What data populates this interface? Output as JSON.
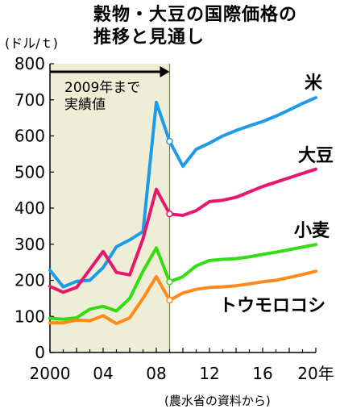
{
  "chart_data": {
    "type": "line",
    "title": [
      "穀物・大豆の国際価格の",
      "推移と見通し"
    ],
    "unit_label": "(ドル/ｔ)",
    "source": "(農水省の資料から)",
    "ylim": [
      0,
      800
    ],
    "yticks": [
      0,
      100,
      200,
      300,
      400,
      500,
      600,
      700,
      800
    ],
    "xlim": [
      2000,
      2020
    ],
    "xticks": [
      {
        "value": 2000,
        "label": "2000"
      },
      {
        "value": 2004,
        "label": "04"
      },
      {
        "value": 2008,
        "label": "08"
      },
      {
        "value": 2012,
        "label": "12"
      },
      {
        "value": 2016,
        "label": "16"
      },
      {
        "value": 2020,
        "label": "20年"
      }
    ],
    "actual_until": 2009,
    "annotation": [
      "2009年まで",
      "実績値"
    ],
    "series": [
      {
        "name": "米",
        "color": "#1e9be8",
        "points": [
          [
            2000,
            228
          ],
          [
            2001,
            182
          ],
          [
            2002,
            197
          ],
          [
            2003,
            200
          ],
          [
            2004,
            235
          ],
          [
            2005,
            293
          ],
          [
            2006,
            312
          ],
          [
            2007,
            335
          ],
          [
            2008,
            693
          ],
          [
            2009,
            585
          ],
          [
            2010,
            516
          ],
          [
            2011,
            563
          ],
          [
            2012,
            580
          ],
          [
            2013,
            600
          ],
          [
            2014,
            615
          ],
          [
            2015,
            628
          ],
          [
            2016,
            640
          ],
          [
            2017,
            655
          ],
          [
            2018,
            672
          ],
          [
            2019,
            690
          ],
          [
            2020,
            706
          ]
        ]
      },
      {
        "name": "大豆",
        "color": "#e8176e",
        "points": [
          [
            2000,
            183
          ],
          [
            2001,
            167
          ],
          [
            2002,
            180
          ],
          [
            2003,
            230
          ],
          [
            2004,
            280
          ],
          [
            2005,
            222
          ],
          [
            2006,
            215
          ],
          [
            2007,
            315
          ],
          [
            2008,
            452
          ],
          [
            2009,
            384
          ],
          [
            2010,
            380
          ],
          [
            2011,
            393
          ],
          [
            2012,
            418
          ],
          [
            2013,
            422
          ],
          [
            2014,
            430
          ],
          [
            2015,
            445
          ],
          [
            2016,
            460
          ],
          [
            2017,
            472
          ],
          [
            2018,
            484
          ],
          [
            2019,
            496
          ],
          [
            2020,
            508
          ]
        ]
      },
      {
        "name": "小麦",
        "color": "#33dd11",
        "points": [
          [
            2000,
            95
          ],
          [
            2001,
            92
          ],
          [
            2002,
            96
          ],
          [
            2003,
            120
          ],
          [
            2004,
            128
          ],
          [
            2005,
            115
          ],
          [
            2006,
            150
          ],
          [
            2007,
            225
          ],
          [
            2008,
            290
          ],
          [
            2009,
            196
          ],
          [
            2010,
            210
          ],
          [
            2011,
            240
          ],
          [
            2012,
            255
          ],
          [
            2013,
            258
          ],
          [
            2014,
            260
          ],
          [
            2015,
            265
          ],
          [
            2016,
            272
          ],
          [
            2017,
            278
          ],
          [
            2018,
            285
          ],
          [
            2019,
            292
          ],
          [
            2020,
            299
          ]
        ]
      },
      {
        "name": "トウモロコシ",
        "color": "#ff8a1c",
        "points": [
          [
            2000,
            82
          ],
          [
            2001,
            82
          ],
          [
            2002,
            90
          ],
          [
            2003,
            88
          ],
          [
            2004,
            102
          ],
          [
            2005,
            80
          ],
          [
            2006,
            96
          ],
          [
            2007,
            150
          ],
          [
            2008,
            210
          ],
          [
            2009,
            145
          ],
          [
            2010,
            165
          ],
          [
            2011,
            175
          ],
          [
            2012,
            180
          ],
          [
            2013,
            182
          ],
          [
            2014,
            185
          ],
          [
            2015,
            190
          ],
          [
            2016,
            196
          ],
          [
            2017,
            200
          ],
          [
            2018,
            208
          ],
          [
            2019,
            216
          ],
          [
            2020,
            225
          ]
        ]
      }
    ]
  }
}
